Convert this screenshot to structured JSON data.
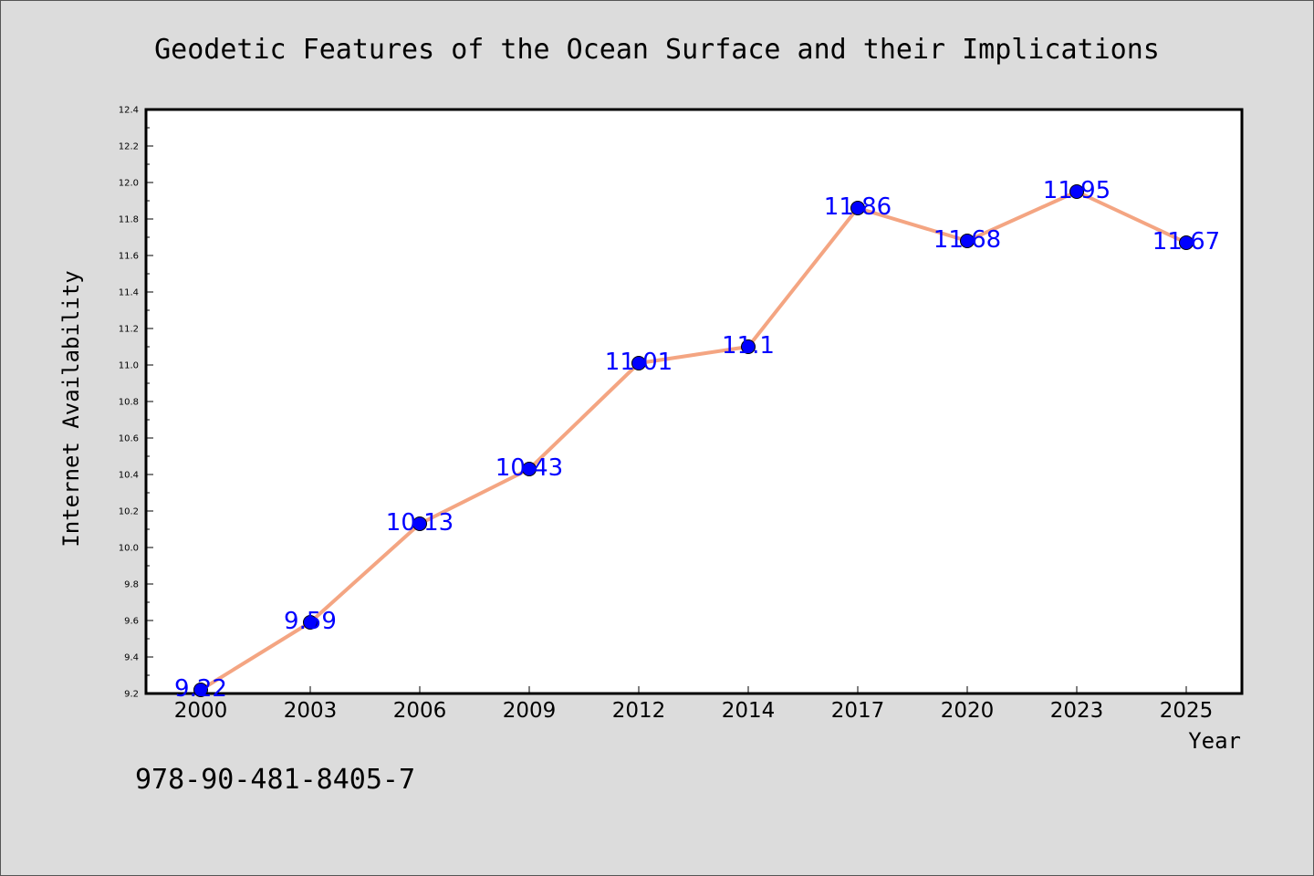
{
  "chart_data": {
    "type": "line",
    "title": "Geodetic Features of the Ocean Surface and their Implications",
    "xlabel": "Year",
    "ylabel": "Internet Availability",
    "categories": [
      "2000",
      "2003",
      "2006",
      "2009",
      "2012",
      "2014",
      "2017",
      "2020",
      "2023",
      "2025"
    ],
    "series": [
      {
        "values": [
          9.22,
          9.59,
          10.13,
          10.43,
          11.01,
          11.1,
          11.86,
          11.68,
          11.95,
          11.67
        ]
      }
    ],
    "data_labels": [
      "9.22",
      "9.59",
      "10.13",
      "10.43",
      "11.01",
      "11.1",
      "11.86",
      "11.68",
      "11.95",
      "11.67"
    ],
    "ylim": [
      9.2,
      12.4
    ],
    "yticks": [
      "9.2",
      "9.4",
      "9.6",
      "9.8",
      "10.0",
      "10.2",
      "10.4",
      "10.6",
      "10.8",
      "11.0",
      "11.2",
      "11.4",
      "11.6",
      "11.8",
      "12.0",
      "12.2",
      "12.4"
    ],
    "grid": false,
    "legend": "none",
    "colors": {
      "line": "#f4a582",
      "marker": "#0000ff",
      "data_label": "#0000ff",
      "background": "#dcdcdc",
      "plot_area": "#ffffff"
    }
  },
  "footnote": "978-90-481-8405-7"
}
